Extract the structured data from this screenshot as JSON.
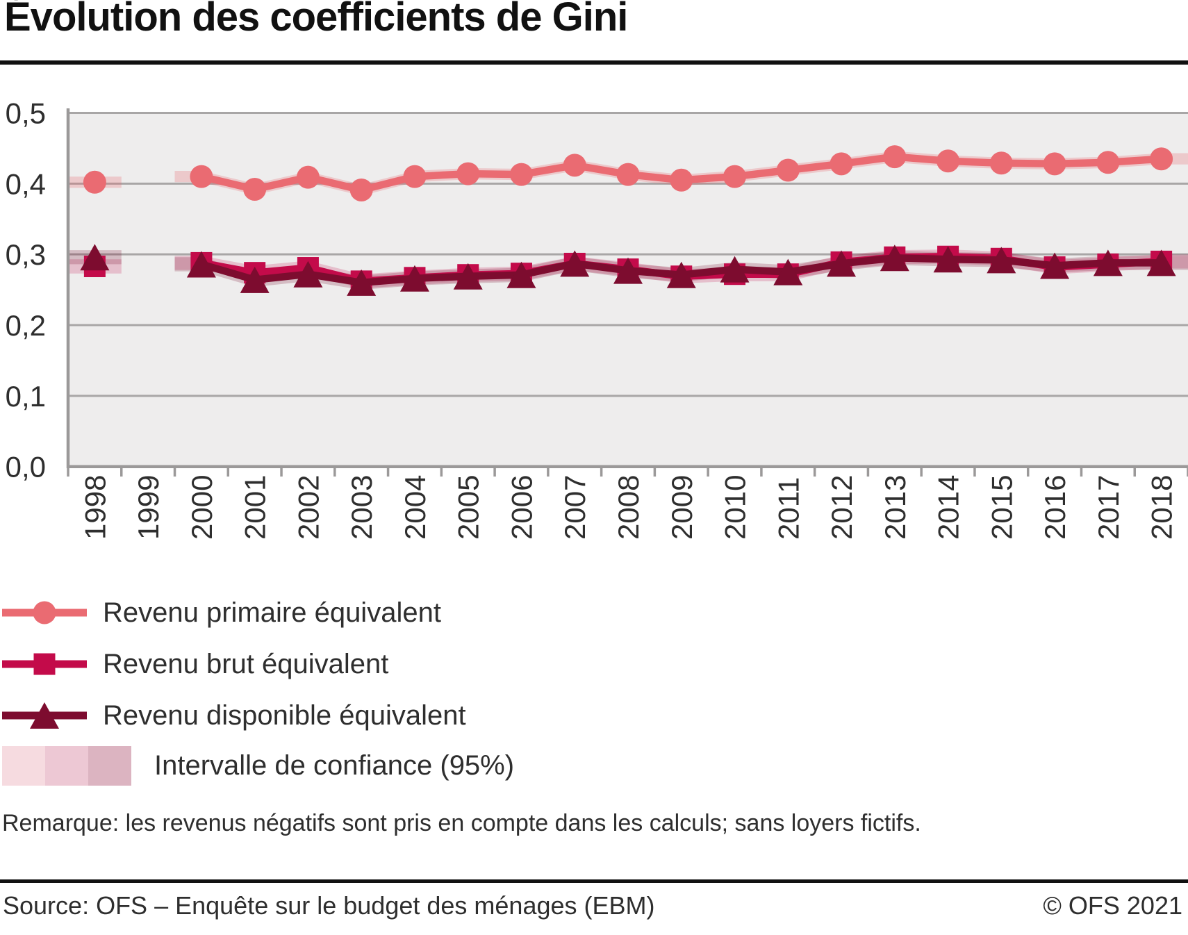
{
  "title": "Évolution des coefficients de Gini",
  "chart_data": {
    "type": "line",
    "x": [
      1998,
      1999,
      2000,
      2001,
      2002,
      2003,
      2004,
      2005,
      2006,
      2007,
      2008,
      2009,
      2010,
      2011,
      2012,
      2013,
      2014,
      2015,
      2016,
      2017,
      2018
    ],
    "series": [
      {
        "key": "primaire",
        "name": "Revenu primaire équivalent",
        "marker": "circle",
        "color": "#ea6b72",
        "band_color": "rgba(233,100,108,0.26)",
        "ci_halfwidth": 0.008,
        "values": [
          0.402,
          null,
          0.41,
          0.392,
          0.409,
          0.391,
          0.41,
          0.414,
          0.413,
          0.426,
          0.413,
          0.405,
          0.41,
          0.419,
          0.428,
          0.438,
          0.432,
          0.429,
          0.428,
          0.43,
          0.435
        ]
      },
      {
        "key": "brut",
        "name": "Revenu brut équivalent",
        "marker": "square",
        "color": "#c30b4a",
        "band_color": "rgba(195,11,74,0.20)",
        "ci_halfwidth": 0.01,
        "values": [
          0.283,
          null,
          0.288,
          0.274,
          0.281,
          0.262,
          0.267,
          0.271,
          0.273,
          0.287,
          0.279,
          0.269,
          0.272,
          0.272,
          0.289,
          0.296,
          0.297,
          0.294,
          0.282,
          0.286,
          0.29
        ]
      },
      {
        "key": "disponible",
        "name": "Revenu disponible équivalent",
        "marker": "triangle",
        "color": "#7d0c2f",
        "band_color": "rgba(125,12,47,0.22)",
        "ci_halfwidth": 0.01,
        "values": [
          0.296,
          null,
          0.286,
          0.264,
          0.272,
          0.26,
          0.266,
          0.269,
          0.271,
          0.287,
          0.277,
          0.271,
          0.279,
          0.275,
          0.287,
          0.295,
          0.293,
          0.292,
          0.284,
          0.288,
          0.288
        ]
      }
    ],
    "ylim": [
      0.0,
      0.5
    ],
    "ytick_values": [
      0.0,
      0.1,
      0.2,
      0.3,
      0.4,
      0.5
    ],
    "ytick_labels": [
      "0,0",
      "0,1",
      "0,2",
      "0,3",
      "0,4",
      "0,5"
    ],
    "grid": true,
    "plot_bg": "#eeeded",
    "grid_color": "#a8a6a6",
    "axis_color": "#9b9999",
    "tick_label_color": "#2e2e2e",
    "legend_position": "below"
  },
  "legend": {
    "items": [
      {
        "key": "primaire",
        "label": "Revenu primaire équivalent"
      },
      {
        "key": "brut",
        "label": "Revenu brut équivalent"
      },
      {
        "key": "disponible",
        "label": "Revenu disponible équivalent"
      }
    ],
    "ci_label": "Intervalle de confiance (95%)",
    "ci_swatch_colors": [
      "#f6dbe0",
      "#edc8d4",
      "#dcb4c1"
    ]
  },
  "note": "Remarque: les revenus négatifs sont pris en compte dans les calculs; sans loyers fictifs.",
  "footer": {
    "source": "Source: OFS – Enquête sur le budget des ménages (EBM)",
    "copyright": "© OFS 2021"
  }
}
